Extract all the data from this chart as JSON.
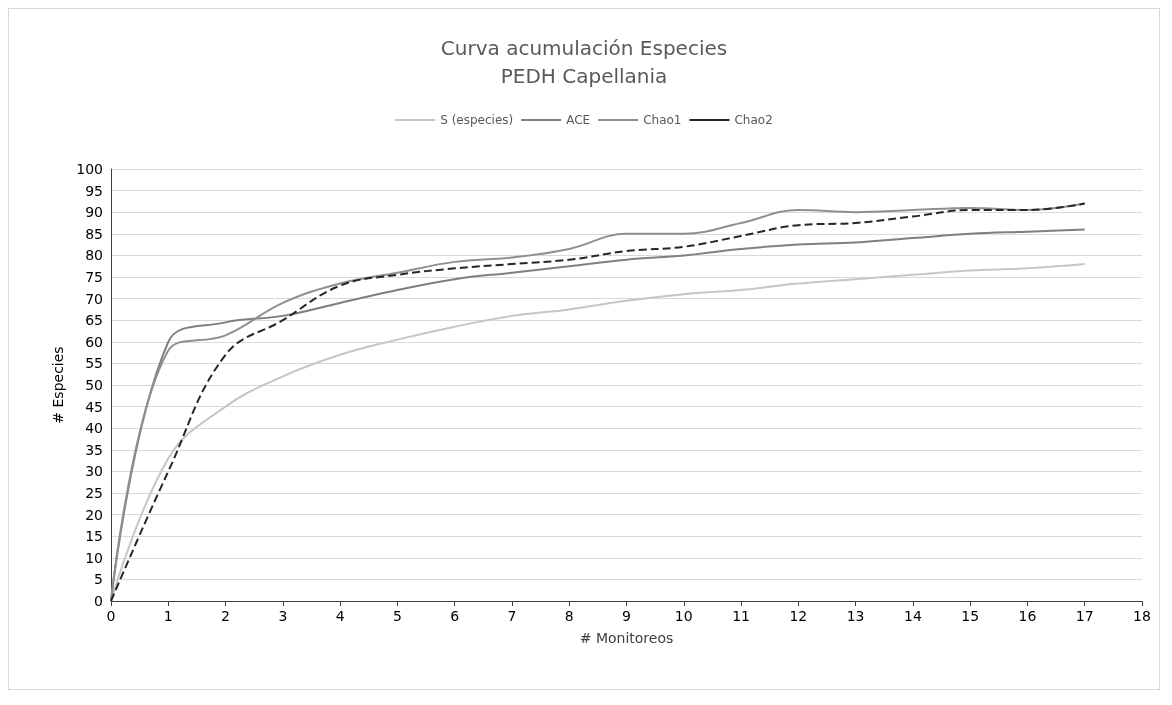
{
  "chart_data": {
    "type": "line",
    "title": "Curva acumulación Especies\nPEDH Capellania",
    "xlabel": "# Monitoreos",
    "ylabel": "# Especies",
    "x": [
      0,
      1,
      2,
      3,
      4,
      5,
      6,
      7,
      8,
      9,
      10,
      11,
      12,
      13,
      14,
      15,
      16,
      17
    ],
    "series": [
      {
        "name": "S (especies)",
        "color": "#c6c6c6",
        "values": [
          0,
          33,
          45,
          52,
          57,
          60.5,
          63.5,
          66,
          67.5,
          69.5,
          71,
          72,
          73.5,
          74.5,
          75.5,
          76.5,
          77,
          78
        ]
      },
      {
        "name": "ACE",
        "color": "#7f7f7f",
        "values": [
          0,
          60,
          64.5,
          66,
          69,
          72,
          74.5,
          76,
          77.5,
          79,
          80,
          81.5,
          82.5,
          83,
          84,
          85,
          85.5,
          86
        ]
      },
      {
        "name": "Chao1",
        "color": "#8f8f8f",
        "values": [
          0,
          58,
          61.5,
          69,
          73.5,
          76,
          78.5,
          79.5,
          81.5,
          85,
          85,
          87.5,
          90.5,
          90,
          90.5,
          91,
          90.5,
          92
        ]
      },
      {
        "name": "Chao2",
        "color": "#262626",
        "line_style": "dashed",
        "values": [
          0,
          30,
          57,
          65,
          73,
          75.5,
          77,
          78,
          79,
          81,
          82,
          84.5,
          87,
          87.5,
          89,
          90.5,
          90.5,
          92
        ]
      }
    ],
    "xlim": [
      0,
      18
    ],
    "xticks": [
      0,
      1,
      2,
      3,
      4,
      5,
      6,
      7,
      8,
      9,
      10,
      11,
      12,
      13,
      14,
      15,
      16,
      17,
      18
    ],
    "ylim": [
      0,
      100
    ],
    "yticks": [
      0,
      5,
      10,
      15,
      20,
      25,
      30,
      35,
      40,
      45,
      50,
      55,
      60,
      65,
      70,
      75,
      80,
      85,
      90,
      95,
      100
    ],
    "grid": "y",
    "legend": "top",
    "marker": "none"
  }
}
